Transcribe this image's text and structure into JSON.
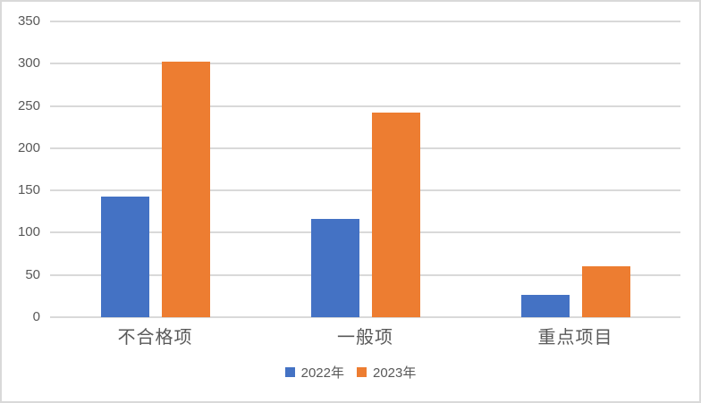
{
  "chart_data": {
    "type": "bar",
    "title": "",
    "xlabel": "",
    "ylabel": "",
    "categories": [
      "不合格项",
      "一般项",
      "重点项目"
    ],
    "series": [
      {
        "name": "2022年",
        "color": "#4472C4",
        "values": [
          143,
          116,
          26
        ]
      },
      {
        "name": "2023年",
        "color": "#ED7D31",
        "values": [
          302,
          242,
          60
        ]
      }
    ],
    "ylim": [
      0,
      350
    ],
    "ytick_step": 50,
    "yticks": [
      0,
      50,
      100,
      150,
      200,
      250,
      300,
      350
    ],
    "grid": "horizontal",
    "legend_position": "bottom-center"
  },
  "colors": {
    "background": "#FFFFFF",
    "gridline": "#D9D9D9",
    "frame_border": "#D9D9D9",
    "axis_text": "#595959"
  }
}
